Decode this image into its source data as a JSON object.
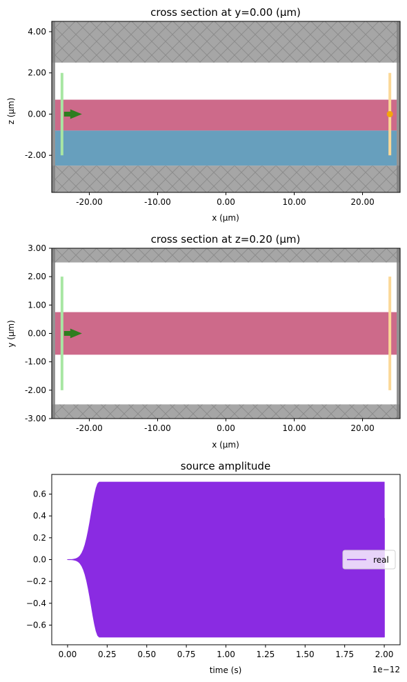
{
  "chart_data": [
    {
      "type": "cross-section",
      "title": "cross section at y=0.00 (μm)",
      "xlabel": "x (μm)",
      "ylabel": "z (μm)",
      "xlim": [
        -25.5,
        25.5
      ],
      "ylim": [
        -3.8,
        4.5
      ],
      "xticks": [
        -20,
        -10,
        0,
        10,
        20
      ],
      "xtick_labels": [
        "-20.00",
        "-10.00",
        "0.00",
        "10.00",
        "20.00"
      ],
      "yticks": [
        -2,
        0,
        2,
        4
      ],
      "ytick_labels": [
        "-2.00",
        "0.00",
        "2.00",
        "4.00"
      ],
      "pml_regions": [
        {
          "x": [
            -25.5,
            25.5
          ],
          "y": [
            2.5,
            4.5
          ]
        },
        {
          "x": [
            -25.5,
            25.5
          ],
          "y": [
            -3.8,
            -2.5
          ]
        }
      ],
      "structures": [
        {
          "name": "waveguide",
          "x": [
            -25,
            25
          ],
          "y": [
            -0.8,
            0.7
          ],
          "color": "#cd6a8a"
        },
        {
          "name": "substrate",
          "x": [
            -25,
            25
          ],
          "y": [
            -2.5,
            -0.8
          ],
          "color": "#679fbd"
        }
      ],
      "boundary_strips": [
        {
          "x": [
            -25.5,
            -25
          ],
          "y": [
            -3.8,
            4.5
          ]
        },
        {
          "x": [
            25,
            25.5
          ],
          "y": [
            -3.8,
            4.5
          ]
        }
      ],
      "source": {
        "x": -24,
        "y_range": [
          -2,
          2
        ],
        "color": "#a8e6a3",
        "arrow_y": 0,
        "arrow_color": "#2d7d1f"
      },
      "monitor": {
        "x": 24,
        "y_range": [
          -2,
          2
        ],
        "color": "#fbd897",
        "point_y": 0,
        "point_color": "#f5a70a"
      }
    },
    {
      "type": "cross-section",
      "title": "cross section at z=0.20 (μm)",
      "xlabel": "x (μm)",
      "ylabel": "y (μm)",
      "xlim": [
        -25.5,
        25.5
      ],
      "ylim": [
        -3.0,
        3.0
      ],
      "xticks": [
        -20,
        -10,
        0,
        10,
        20
      ],
      "xtick_labels": [
        "-20.00",
        "-10.00",
        "0.00",
        "10.00",
        "20.00"
      ],
      "yticks": [
        -3,
        -2,
        -1,
        0,
        1,
        2,
        3
      ],
      "ytick_labels": [
        "-3.00",
        "-2.00",
        "-1.00",
        "0.00",
        "1.00",
        "2.00",
        "3.00"
      ],
      "pml_regions": [
        {
          "x": [
            -25.5,
            25.5
          ],
          "y": [
            2.5,
            3.0
          ]
        },
        {
          "x": [
            -25.5,
            25.5
          ],
          "y": [
            -3.0,
            -2.5
          ]
        }
      ],
      "structures": [
        {
          "name": "waveguide",
          "x": [
            -25,
            25
          ],
          "y": [
            -0.75,
            0.75
          ],
          "color": "#cd6a8a"
        }
      ],
      "boundary_strips": [
        {
          "x": [
            -25.5,
            -25
          ],
          "y": [
            -3.0,
            3.0
          ]
        },
        {
          "x": [
            25,
            25.5
          ],
          "y": [
            -3.0,
            3.0
          ]
        }
      ],
      "source": {
        "x": -24,
        "y_range": [
          -2,
          2
        ],
        "color": "#a8e6a3",
        "arrow_y": 0,
        "arrow_color": "#2d7d1f"
      },
      "monitor": {
        "x": 24,
        "y_range": [
          -2,
          2
        ],
        "color": "#fbd897"
      }
    },
    {
      "type": "line",
      "title": "source amplitude",
      "xlabel": "time (s)",
      "ylabel": "",
      "xlim": [
        -1e-13,
        2.1e-12
      ],
      "ylim": [
        -0.78,
        0.78
      ],
      "xticks": [
        0,
        2.5e-13,
        5e-13,
        7.5e-13,
        1e-12,
        1.25e-12,
        1.5e-12,
        1.75e-12,
        2e-12
      ],
      "xtick_labels": [
        "0.00",
        "0.25",
        "0.50",
        "0.75",
        "1.00",
        "1.25",
        "1.50",
        "1.75",
        "2.00"
      ],
      "x_offset_label": "1e−12",
      "yticks": [
        -0.6,
        -0.4,
        -0.2,
        0.0,
        0.2,
        0.4,
        0.6
      ],
      "ytick_labels": [
        "−0.6",
        "−0.4",
        "−0.2",
        "0.0",
        "0.2",
        "0.4",
        "0.6"
      ],
      "series": [
        {
          "name": "real",
          "color": "#8a2be2",
          "envelope": {
            "t_start": 0,
            "t_ramp_end": 2e-13,
            "t_end": 2e-12,
            "amplitude": 0.71,
            "final_value": 0.38
          }
        }
      ],
      "legend": "center-right"
    }
  ]
}
